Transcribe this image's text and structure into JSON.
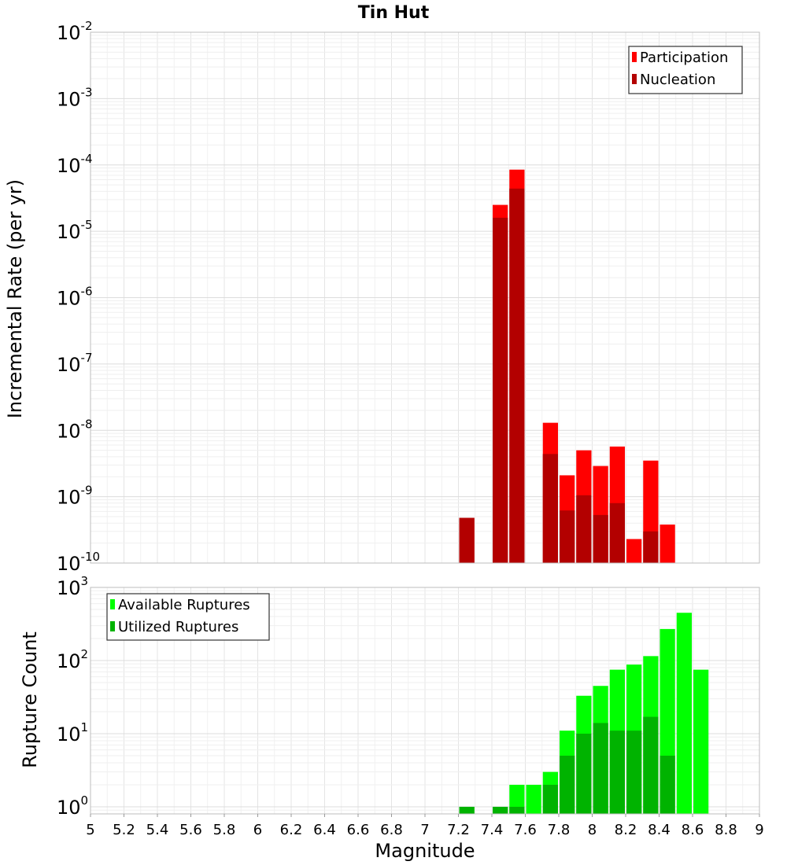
{
  "chart_data": [
    {
      "type": "bar",
      "title": "Tin Hut",
      "ylabel": "Incremental Rate (per yr)",
      "y_scale": "log",
      "ylim": [
        1e-10,
        0.01
      ],
      "xlim": [
        5,
        9
      ],
      "bin_width": 0.1,
      "grid": true,
      "legend_position": "top-right",
      "y_tick_exponents": [
        "-10",
        "-9",
        "-8",
        "-7",
        "-6",
        "-5",
        "-4",
        "-3",
        "-2"
      ],
      "x": [
        7.25,
        7.45,
        7.55,
        7.75,
        7.85,
        7.95,
        8.05,
        8.15,
        8.25,
        8.35,
        8.45
      ],
      "series": [
        {
          "name": "Participation",
          "color": "#ff0000",
          "values": [
            4.8e-10,
            2.5e-05,
            8.5e-05,
            1.3e-08,
            2.1e-09,
            5e-09,
            2.9e-09,
            5.7e-09,
            2.3e-10,
            3.5e-09,
            3.8e-10
          ]
        },
        {
          "name": "Nucleation",
          "color": "#b30000",
          "values": [
            4.8e-10,
            1.6e-05,
            4.4e-05,
            4.4e-09,
            6.2e-10,
            1.05e-09,
            5.3e-10,
            8e-10,
            1e-10,
            3e-10,
            1e-10
          ]
        }
      ]
    },
    {
      "type": "bar",
      "xlabel": "Magnitude",
      "ylabel": "Rupture Count",
      "y_scale": "log",
      "ylim": [
        0.8,
        1000
      ],
      "xlim": [
        5,
        9
      ],
      "bin_width": 0.1,
      "grid": true,
      "legend_position": "top-left",
      "y_tick_exponents": [
        "0",
        "1",
        "2",
        "3"
      ],
      "x_ticks": [
        "5",
        "5.2",
        "5.4",
        "5.6",
        "5.8",
        "6",
        "6.2",
        "6.4",
        "6.6",
        "6.8",
        "7",
        "7.2",
        "7.4",
        "7.6",
        "7.8",
        "8",
        "8.2",
        "8.4",
        "8.6",
        "8.8",
        "9"
      ],
      "x": [
        7.25,
        7.45,
        7.55,
        7.65,
        7.75,
        7.85,
        7.95,
        8.05,
        8.15,
        8.25,
        8.35,
        8.45,
        8.55,
        8.65
      ],
      "series": [
        {
          "name": "Available Ruptures",
          "color": "#00ff00",
          "values": [
            1,
            1,
            2,
            2,
            3,
            11,
            33,
            45,
            75,
            88,
            115,
            270,
            450,
            75
          ]
        },
        {
          "name": "Utilized Ruptures",
          "color": "#00b300",
          "values": [
            1,
            1,
            1,
            0,
            2,
            5,
            10,
            14,
            11,
            11,
            17,
            5,
            0,
            0
          ]
        }
      ]
    }
  ]
}
